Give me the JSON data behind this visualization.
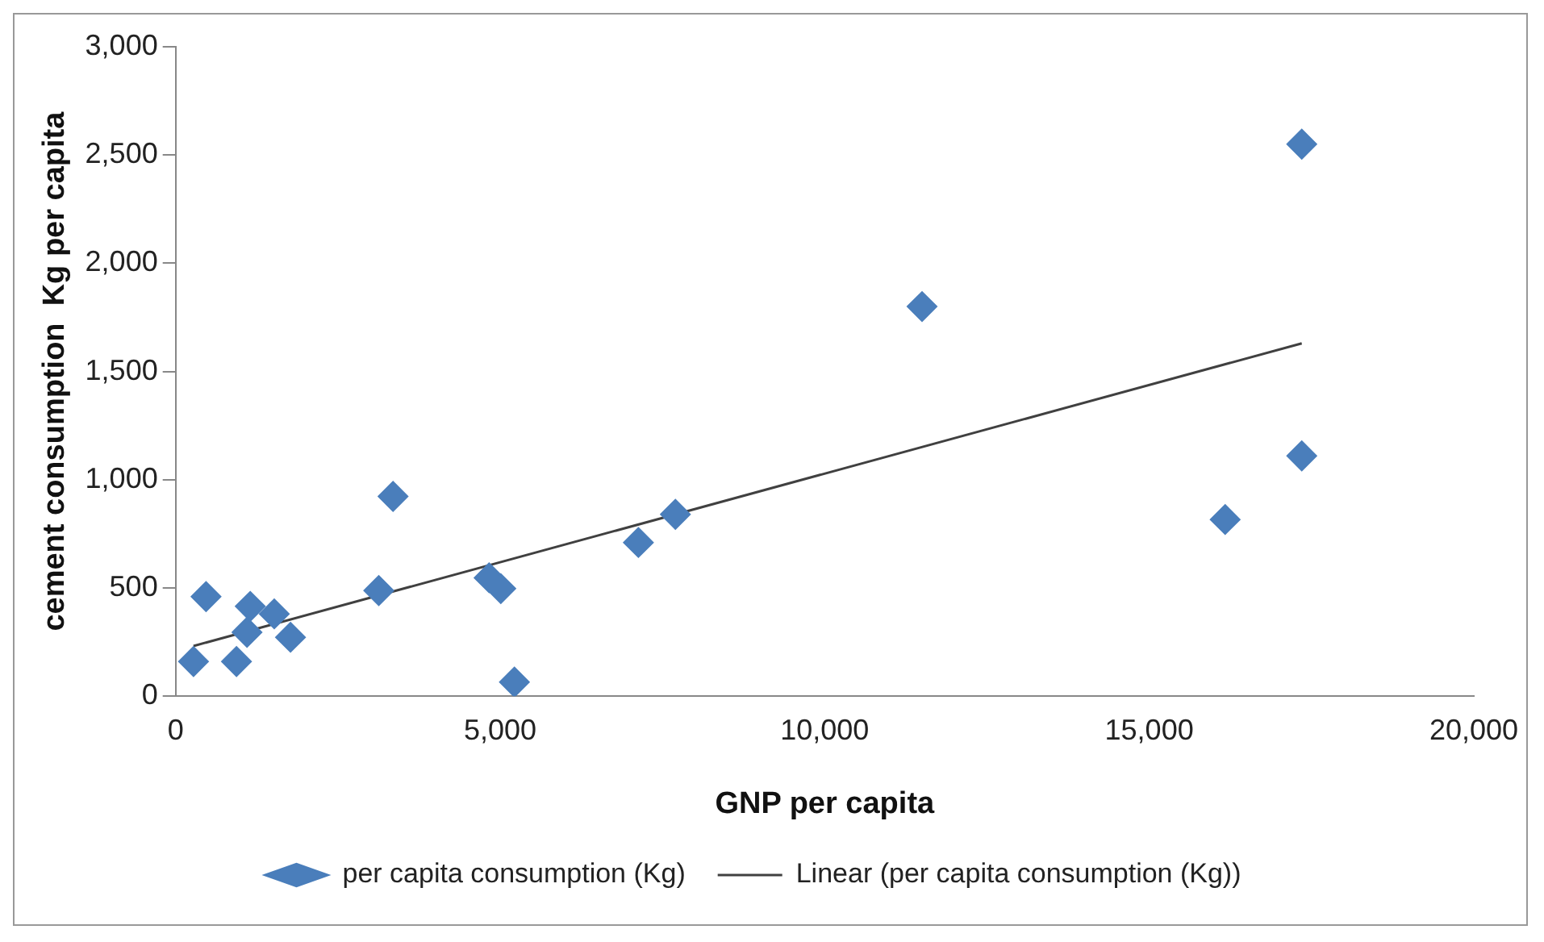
{
  "chart_data": {
    "type": "scatter",
    "xlabel": "GNP per capita",
    "ylabel": "cement consumption  Kg per capita",
    "grid": false,
    "legend": "bottom",
    "xlim": [
      0,
      20000
    ],
    "xticks": [
      {
        "value": 0,
        "label": "0"
      },
      {
        "value": 5000,
        "label": "5,000"
      },
      {
        "value": 10000,
        "label": "10,000"
      },
      {
        "value": 15000,
        "label": "15,000"
      },
      {
        "value": 20000,
        "label": "20,000"
      }
    ],
    "ylim": [
      0,
      3000
    ],
    "yticks": [
      {
        "value": 0,
        "label": "0"
      },
      {
        "value": 500,
        "label": "500"
      },
      {
        "value": 1000,
        "label": "1,000"
      },
      {
        "value": 1500,
        "label": "1,500"
      },
      {
        "value": 2000,
        "label": "2,000"
      },
      {
        "value": 2500,
        "label": "2,500"
      },
      {
        "value": 3000,
        "label": "3,000"
      }
    ],
    "series": [
      {
        "name": "per capita consumption (Kg)",
        "marker": "diamond",
        "color": "#4a7ebb",
        "x": [
          276,
          469,
          938,
          1150,
          1100,
          1520,
          1770,
          3130,
          3350,
          4830,
          5010,
          5220,
          7130,
          7700,
          11500,
          16170,
          17350,
          17350
        ],
        "values": [
          160,
          460,
          160,
          415,
          295,
          380,
          272,
          488,
          923,
          547,
          497,
          65,
          710,
          840,
          1800,
          816,
          1110,
          2550
        ]
      },
      {
        "name": "Linear (per capita consumption (Kg))",
        "type": "line",
        "marker": "none",
        "color": "#404040",
        "x": [
          276,
          17350
        ],
        "values": [
          232,
          1630
        ]
      }
    ]
  }
}
